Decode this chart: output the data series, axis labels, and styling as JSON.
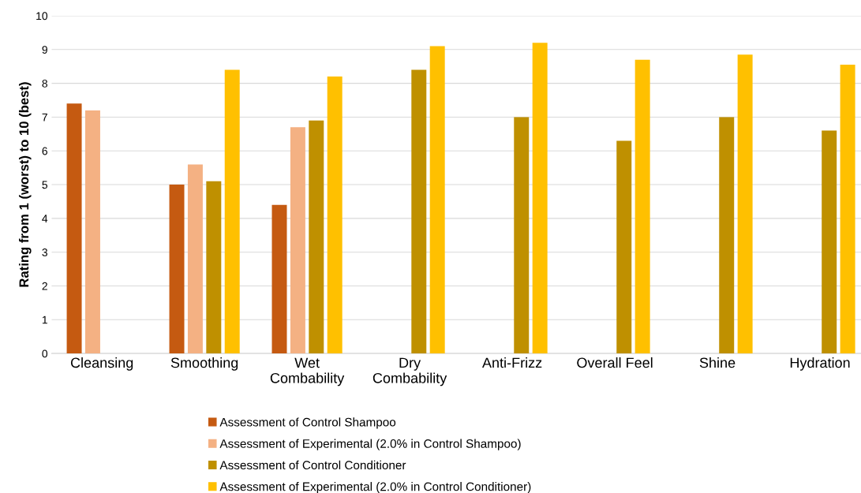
{
  "chart_data": {
    "type": "bar",
    "ylabel": "Rating from 1 (worst) to 10 (best)",
    "categories": [
      "Cleansing",
      "Smoothing",
      "Wet\nCombability",
      "Dry\nCombability",
      "Anti-Frizz",
      "Overall Feel",
      "Shine",
      "Hydration"
    ],
    "series": [
      {
        "name": "Assessment of Control Shampoo",
        "color": "#c55a11",
        "values": [
          7.4,
          5.0,
          4.4,
          null,
          null,
          null,
          null,
          null
        ]
      },
      {
        "name": "Assessment of Experimental (2.0% in Control Shampoo)",
        "color": "#f4b183",
        "values": [
          7.2,
          5.6,
          6.7,
          null,
          null,
          null,
          null,
          null
        ]
      },
      {
        "name": "Assessment of Control Conditioner",
        "color": "#bf9000",
        "values": [
          null,
          5.1,
          6.9,
          8.4,
          7.0,
          6.3,
          7.0,
          6.6
        ]
      },
      {
        "name": "Assessment of Experimental (2.0% in Control Conditioner)",
        "color": "#ffc000",
        "values": [
          null,
          8.4,
          8.2,
          9.1,
          9.2,
          8.7,
          8.85,
          8.55
        ]
      }
    ],
    "ylim": [
      0,
      10
    ],
    "yticks": [
      0,
      1,
      2,
      3,
      4,
      5,
      6,
      7,
      8,
      9,
      10
    ],
    "grid": "y",
    "legend": "bottom"
  }
}
